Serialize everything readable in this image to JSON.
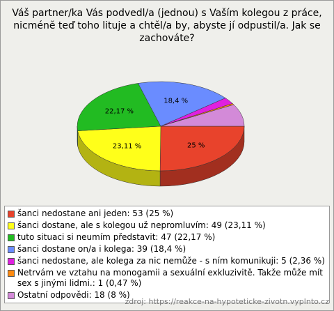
{
  "chart_data": {
    "type": "pie3d",
    "title": [
      "Váš partner/ka Vás podvedl/a (jednou) s Vaším kolegou z práce,",
      "nicméně teď toho lituje a chtěl/a by, abyste jí odpustil/a. Jak se",
      "zachováte?"
    ],
    "categories": [
      "šanci nedostane ani jeden: 53 (25 %)",
      "šanci dostane, ale s kolegou už nepromluvím: 49 (23,11 %)",
      "tuto situaci si neumím představit: 47 (22,17 %)",
      "šanci dostane on/a i kolega: 39 (18,4 %)",
      "šanci nedostane, ale kolega za nic nemůže - s ním komunikuji: 5 (2,36 %)",
      "Netrvám ve vztahu na monogamii a sexuální exkluzivitě. Takže může mít sex s jinými lidmi.: 1 (0,47 %)",
      "Ostatní odpovědi: 18 (8 %)"
    ],
    "values": [
      25,
      23.11,
      22.17,
      18.4,
      2.36,
      0.47,
      8
    ],
    "value_labels": [
      "25 %",
      "23,11 %",
      "22,17 %",
      "18,4 %",
      null,
      null,
      null
    ],
    "colors": [
      "#e8432c",
      "#ffff1a",
      "#22bb22",
      "#6a8cff",
      "#e020e0",
      "#ff8a10",
      "#d38ad8"
    ],
    "source": "zdroj: https://reakce-na-hypoteticke-zivotn.vyplnto.cz"
  }
}
